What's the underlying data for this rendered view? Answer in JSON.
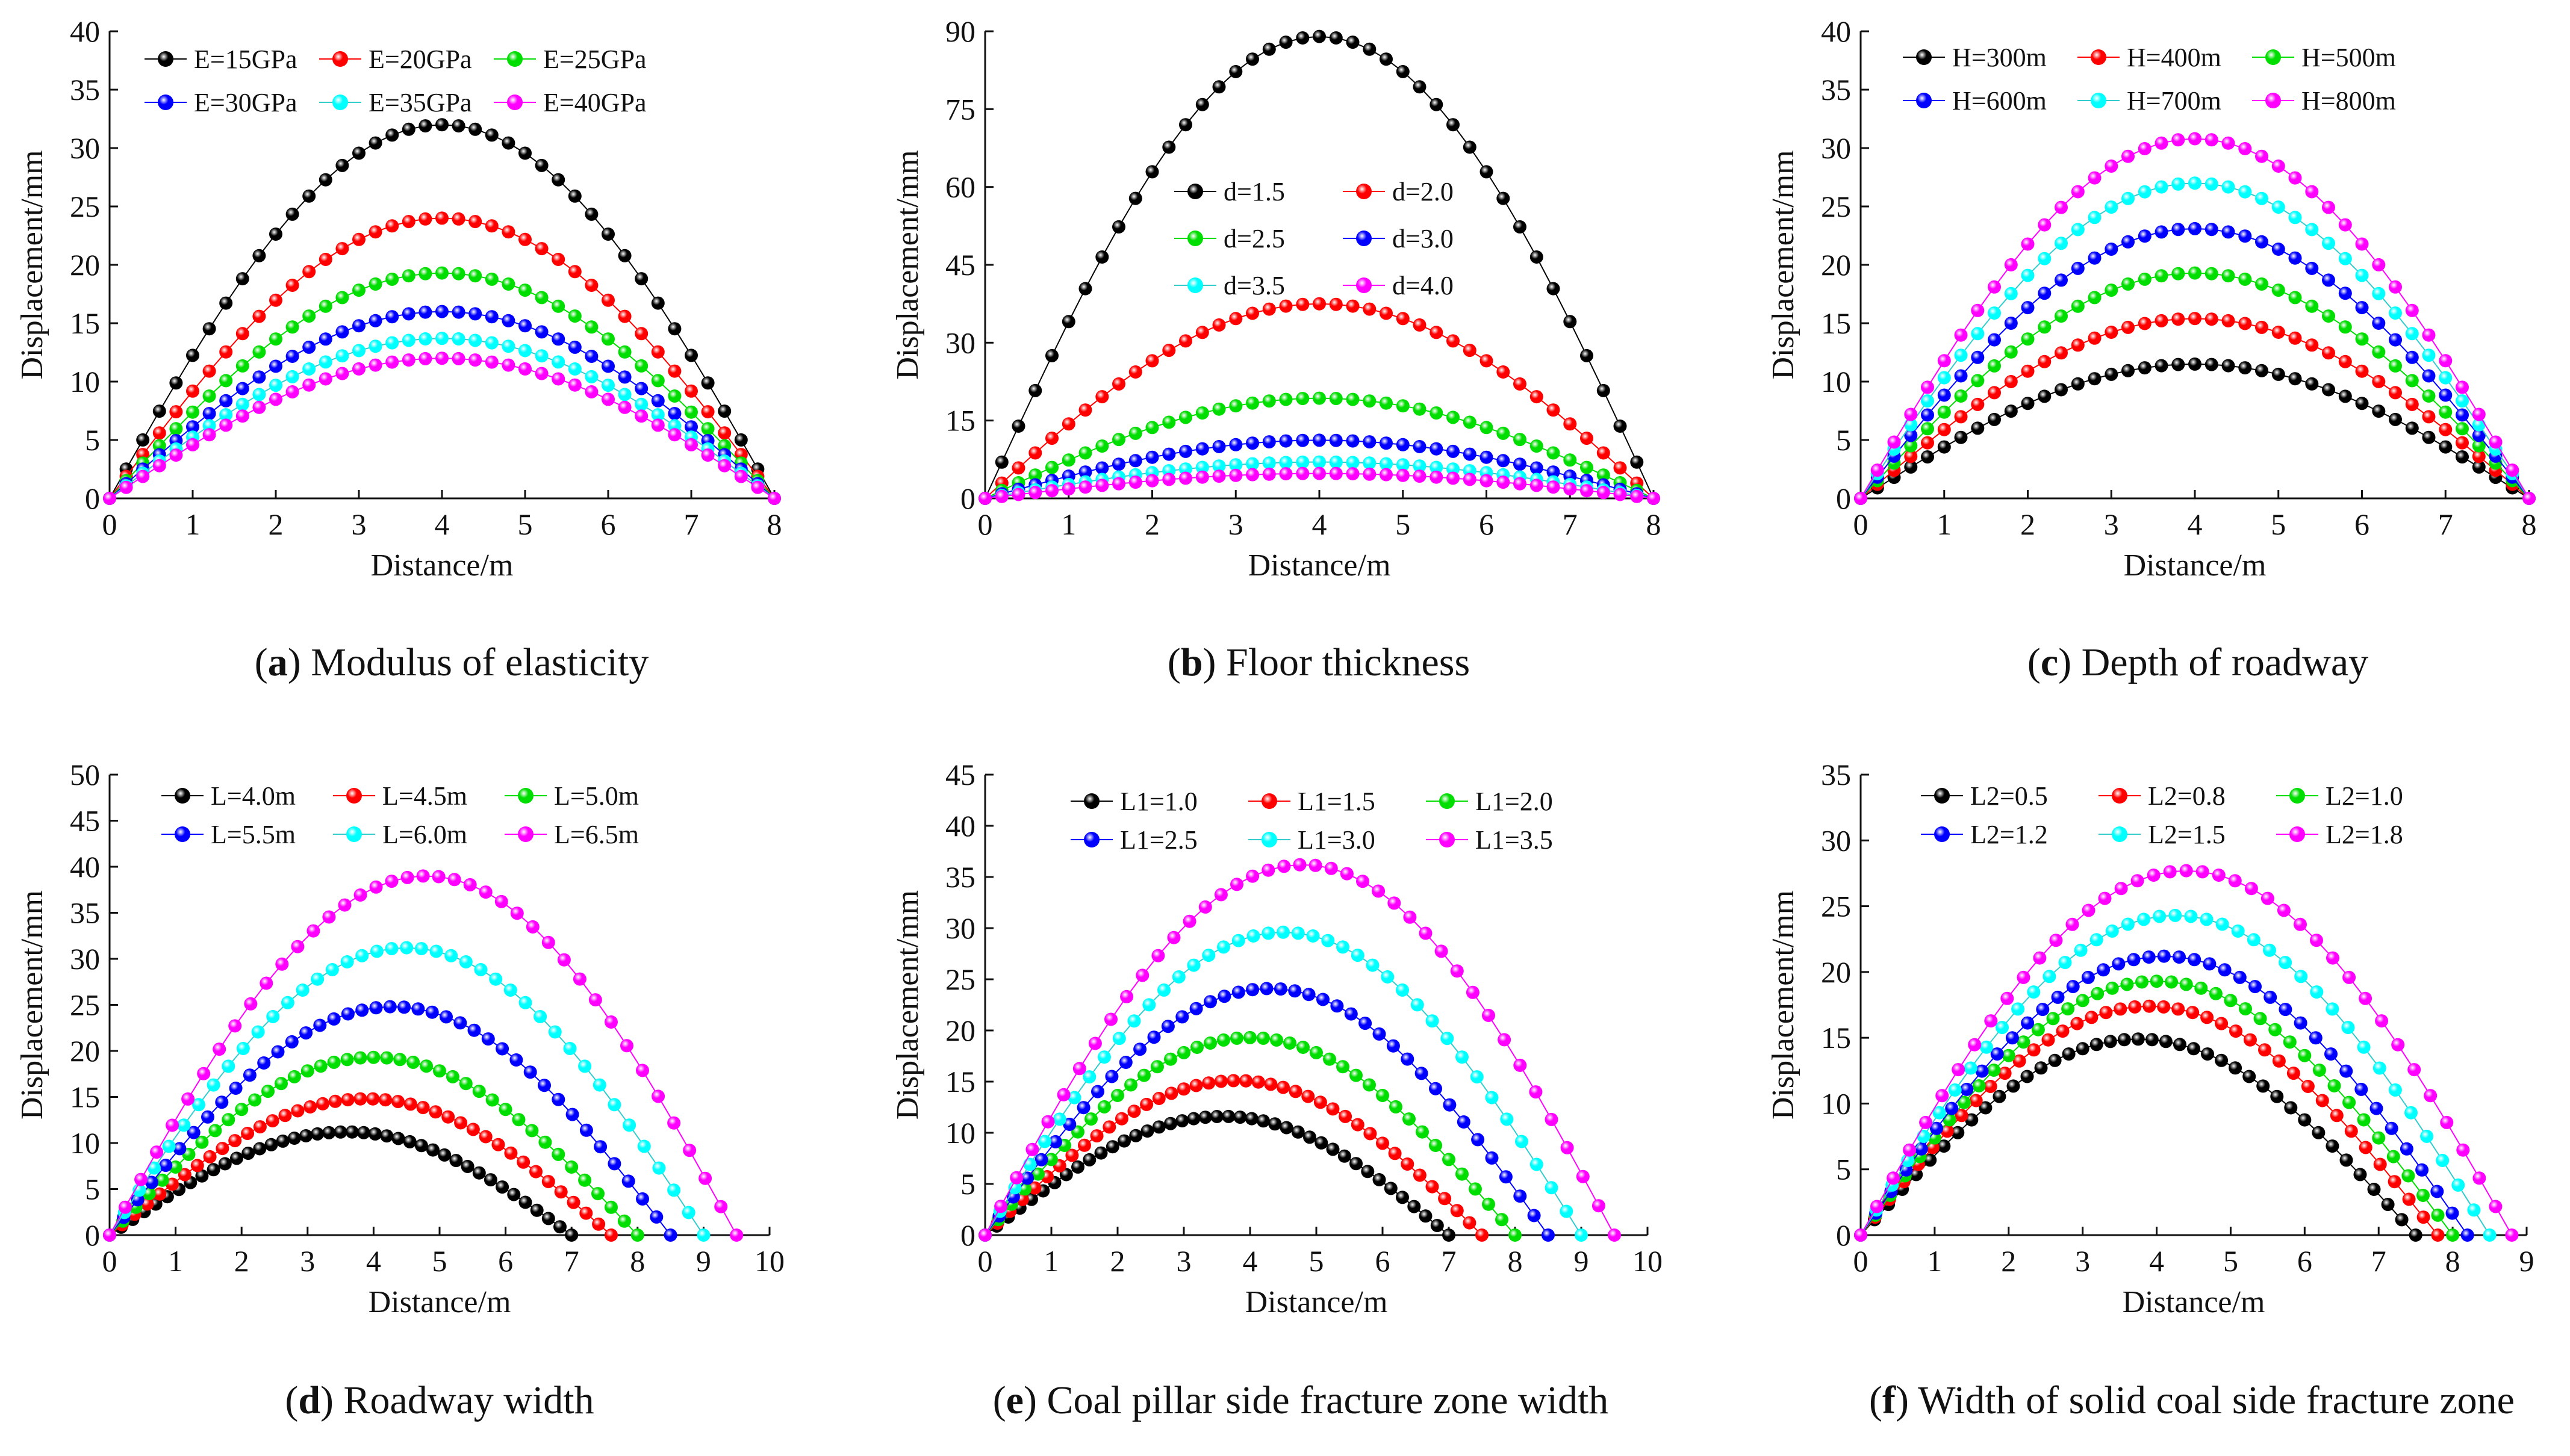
{
  "chart_data": [
    {
      "panel": "a",
      "type": "line",
      "caption_letter": "a",
      "caption_text": "Modulus of elasticity",
      "xlabel": "Distance/m",
      "ylabel": "Displacement/mm",
      "xlim": [
        0,
        8
      ],
      "ylim": [
        0,
        40
      ],
      "xticks": [
        0,
        1,
        2,
        3,
        4,
        5,
        6,
        7,
        8
      ],
      "yticks": [
        0,
        5,
        10,
        15,
        20,
        25,
        30,
        35,
        40
      ],
      "legend_columns": 3,
      "x_span": [
        0,
        8
      ],
      "peak_x": 4.0,
      "points_per_series": 41,
      "series": [
        {
          "name": "E=15GPa",
          "color": "#000000",
          "peak": 32
        },
        {
          "name": "E=20GPa",
          "color": "#ff0000",
          "peak": 24
        },
        {
          "name": "E=25GPa",
          "color": "#00dd00",
          "peak": 19.3
        },
        {
          "name": "E=30GPa",
          "color": "#0000ff",
          "peak": 16
        },
        {
          "name": "E=35GPa",
          "color": "#00ffff",
          "peak": 13.7
        },
        {
          "name": "E=40GPa",
          "color": "#ff00ff",
          "peak": 12
        }
      ]
    },
    {
      "panel": "b",
      "type": "line",
      "caption_letter": "b",
      "caption_text": "Floor thickness",
      "xlabel": "Distance/m",
      "ylabel": "Displacement/mm",
      "xlim": [
        0,
        8
      ],
      "ylim": [
        0,
        90
      ],
      "xticks": [
        0,
        1,
        2,
        3,
        4,
        5,
        6,
        7,
        8
      ],
      "yticks": [
        0,
        15,
        30,
        45,
        60,
        75,
        90
      ],
      "legend_columns": 2,
      "x_span": [
        0,
        8
      ],
      "peak_x": 4.0,
      "points_per_series": 41,
      "series": [
        {
          "name": "d=1.5",
          "color": "#000000",
          "peak": 89
        },
        {
          "name": "d=2.0",
          "color": "#ff0000",
          "peak": 37.5
        },
        {
          "name": "d=2.5",
          "color": "#00dd00",
          "peak": 19.3
        },
        {
          "name": "d=3.0",
          "color": "#0000ff",
          "peak": 11.2
        },
        {
          "name": "d=3.5",
          "color": "#00ffff",
          "peak": 7
        },
        {
          "name": "d=4.0",
          "color": "#ff00ff",
          "peak": 4.8
        }
      ]
    },
    {
      "panel": "c",
      "type": "line",
      "caption_letter": "c",
      "caption_text": "Depth of roadway",
      "xlabel": "Distance/m",
      "ylabel": "Displacement/mm",
      "xlim": [
        0,
        8
      ],
      "ylim": [
        0,
        40
      ],
      "xticks": [
        0,
        1,
        2,
        3,
        4,
        5,
        6,
        7,
        8
      ],
      "yticks": [
        0,
        5,
        10,
        15,
        20,
        25,
        30,
        35,
        40
      ],
      "legend_columns": 3,
      "x_span": [
        0,
        8
      ],
      "peak_x": 4.0,
      "points_per_series": 41,
      "series": [
        {
          "name": "H=300m",
          "color": "#000000",
          "peak": 11.5
        },
        {
          "name": "H=400m",
          "color": "#ff0000",
          "peak": 15.4
        },
        {
          "name": "H=500m",
          "color": "#00dd00",
          "peak": 19.3
        },
        {
          "name": "H=600m",
          "color": "#0000ff",
          "peak": 23.1
        },
        {
          "name": "H=700m",
          "color": "#00ffff",
          "peak": 27
        },
        {
          "name": "H=800m",
          "color": "#ff00ff",
          "peak": 30.8
        }
      ]
    },
    {
      "panel": "d",
      "type": "line",
      "caption_letter": "d",
      "caption_text": "Roadway width",
      "xlabel": "Distance/m",
      "ylabel": "Displacement/mm",
      "xlim": [
        0,
        10
      ],
      "ylim": [
        0,
        50
      ],
      "xticks": [
        0,
        1,
        2,
        3,
        4,
        5,
        6,
        7,
        8,
        9,
        10
      ],
      "yticks": [
        0,
        5,
        10,
        15,
        20,
        25,
        30,
        35,
        40,
        45,
        50
      ],
      "legend_columns": 3,
      "points_per_series": 41,
      "series": [
        {
          "name": "L=4.0m",
          "color": "#000000",
          "peak": 11.2,
          "x_end": 7.0,
          "peak_x": 3.6
        },
        {
          "name": "L=4.5m",
          "color": "#ff0000",
          "peak": 14.8,
          "x_end": 7.6,
          "peak_x": 3.9
        },
        {
          "name": "L=5.0m",
          "color": "#00dd00",
          "peak": 19.3,
          "x_end": 8.0,
          "peak_x": 4.0
        },
        {
          "name": "L=5.5m",
          "color": "#0000ff",
          "peak": 24.8,
          "x_end": 8.5,
          "peak_x": 4.3
        },
        {
          "name": "L=6.0m",
          "color": "#00ffff",
          "peak": 31.2,
          "x_end": 9.0,
          "peak_x": 4.5
        },
        {
          "name": "L=6.5m",
          "color": "#ff00ff",
          "peak": 39,
          "x_end": 9.5,
          "peak_x": 4.8
        }
      ]
    },
    {
      "panel": "e",
      "type": "line",
      "caption_letter": "e",
      "caption_text": "Coal pillar side fracture zone width",
      "xlabel": "Distance/m",
      "ylabel": "Displacement/mm",
      "xlim": [
        0,
        10
      ],
      "ylim": [
        0,
        45
      ],
      "xticks": [
        0,
        1,
        2,
        3,
        4,
        5,
        6,
        7,
        8,
        9,
        10
      ],
      "yticks": [
        0,
        5,
        10,
        15,
        20,
        25,
        30,
        35,
        40,
        45
      ],
      "legend_columns": 3,
      "points_per_series": 41,
      "series": [
        {
          "name": "L1=1.0",
          "color": "#000000",
          "peak": 11.6,
          "x_end": 7.0,
          "peak_x": 3.6
        },
        {
          "name": "L1=1.5",
          "color": "#ff0000",
          "peak": 15.1,
          "x_end": 7.5,
          "peak_x": 3.8
        },
        {
          "name": "L1=2.0",
          "color": "#00dd00",
          "peak": 19.3,
          "x_end": 8.0,
          "peak_x": 4.0
        },
        {
          "name": "L1=2.5",
          "color": "#0000ff",
          "peak": 24.1,
          "x_end": 8.5,
          "peak_x": 4.3
        },
        {
          "name": "L1=3.0",
          "color": "#00ffff",
          "peak": 29.6,
          "x_end": 9.0,
          "peak_x": 4.5
        },
        {
          "name": "L1=3.5",
          "color": "#ff00ff",
          "peak": 36.2,
          "x_end": 9.5,
          "peak_x": 4.8
        }
      ]
    },
    {
      "panel": "f",
      "type": "line",
      "caption_letter": "f",
      "caption_text": "Width of solid coal side fracture zone",
      "xlabel": "Distance/m",
      "ylabel": "Displacement/mm",
      "xlim": [
        0,
        9
      ],
      "ylim": [
        0,
        35
      ],
      "xticks": [
        0,
        1,
        2,
        3,
        4,
        5,
        6,
        7,
        8,
        9
      ],
      "yticks": [
        0,
        5,
        10,
        15,
        20,
        25,
        30,
        35
      ],
      "legend_columns": 3,
      "points_per_series": 41,
      "series": [
        {
          "name": "L2=0.5",
          "color": "#000000",
          "peak": 14.9,
          "x_end": 7.5,
          "peak_x": 3.75
        },
        {
          "name": "L2=0.8",
          "color": "#ff0000",
          "peak": 17.4,
          "x_end": 7.8,
          "peak_x": 3.9
        },
        {
          "name": "L2=1.0",
          "color": "#00dd00",
          "peak": 19.3,
          "x_end": 8.0,
          "peak_x": 4.0
        },
        {
          "name": "L2=1.2",
          "color": "#0000ff",
          "peak": 21.2,
          "x_end": 8.2,
          "peak_x": 4.1
        },
        {
          "name": "L2=1.5",
          "color": "#00ffff",
          "peak": 24.3,
          "x_end": 8.5,
          "peak_x": 4.25
        },
        {
          "name": "L2=1.8",
          "color": "#ff00ff",
          "peak": 27.7,
          "x_end": 8.8,
          "peak_x": 4.4
        }
      ]
    }
  ]
}
